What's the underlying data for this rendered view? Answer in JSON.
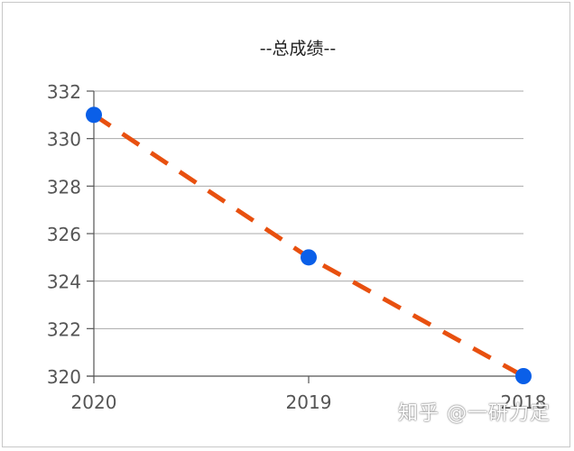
{
  "chart_data": {
    "type": "line",
    "title": "--总成绩--",
    "categories": [
      "2020",
      "2019",
      "2018"
    ],
    "series": [
      {
        "values": [
          331,
          325,
          320
        ]
      }
    ],
    "ylim": [
      320,
      332
    ],
    "yticks": [
      320,
      322,
      324,
      326,
      328,
      330,
      332
    ],
    "grid": true,
    "line_color": "#e8500f",
    "marker_color": "#0a5fe8",
    "line_style": "dashed"
  },
  "watermark": "知乎 @一研力定"
}
